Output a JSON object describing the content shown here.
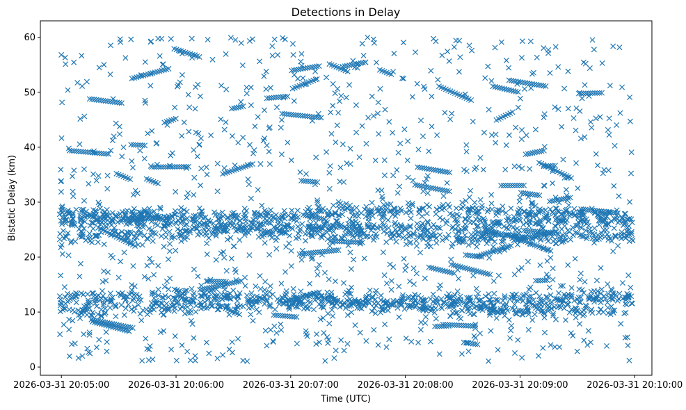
{
  "chart_data": {
    "type": "scatter",
    "title": "Detections in Delay",
    "xlabel": "Time (UTC)",
    "ylabel": "Bistatic Delay (km)",
    "x_ticks": [
      "2026-03-31 20:05:00",
      "2026-03-31 20:06:00",
      "2026-03-31 20:07:00",
      "2026-03-31 20:08:00",
      "2026-03-31 20:09:00",
      "2026-03-31 20:10:00"
    ],
    "y_ticks": [
      0,
      10,
      20,
      30,
      40,
      50,
      60
    ],
    "xlim": [
      "2026-03-31 20:04:49",
      "2026-03-31 20:10:09"
    ],
    "ylim": [
      -1.5,
      63
    ],
    "marker": "x",
    "color": "#1f77b4",
    "x_range": [
      "2026-03-31 20:04:59",
      "2026-03-31 20:09:59"
    ],
    "clusters": [
      {
        "y_center": 11.0,
        "y_spread": 1.2,
        "density": "high"
      },
      {
        "y_center": 12.5,
        "y_spread": 1.0,
        "density": "high"
      },
      {
        "y_center": 24.0,
        "y_spread": 1.0,
        "density": "high"
      },
      {
        "y_center": 26.0,
        "y_spread": 1.0,
        "density": "high"
      },
      {
        "y_center": 28.0,
        "y_spread": 1.0,
        "density": "high"
      }
    ],
    "background": {
      "y_range": [
        1,
        60
      ],
      "density": "moderate"
    }
  }
}
